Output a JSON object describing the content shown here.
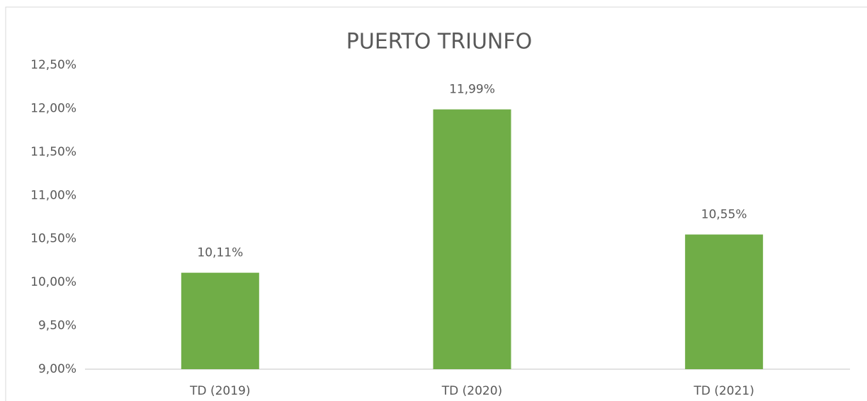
{
  "chart_data": {
    "type": "bar",
    "title": "PUERTO TRIUNFO",
    "categories": [
      "TD (2019)",
      "TD (2020)",
      "TD (2021)"
    ],
    "values": [
      10.11,
      11.99,
      10.55
    ],
    "value_labels": [
      "10,11%",
      "11,99%",
      "10,55%"
    ],
    "color": "#70ad47",
    "ylim": [
      9,
      12.5
    ],
    "yticks": [
      {
        "value": 9,
        "label": "9,00%"
      },
      {
        "value": 9.5,
        "label": "9,50%"
      },
      {
        "value": 10,
        "label": "10,00%"
      },
      {
        "value": 10.5,
        "label": "10,50%"
      },
      {
        "value": 11,
        "label": "11,00%"
      },
      {
        "value": 11.5,
        "label": "11,50%"
      },
      {
        "value": 12,
        "label": "12,00%"
      },
      {
        "value": 12.5,
        "label": "12,50%"
      }
    ],
    "grid": false
  }
}
